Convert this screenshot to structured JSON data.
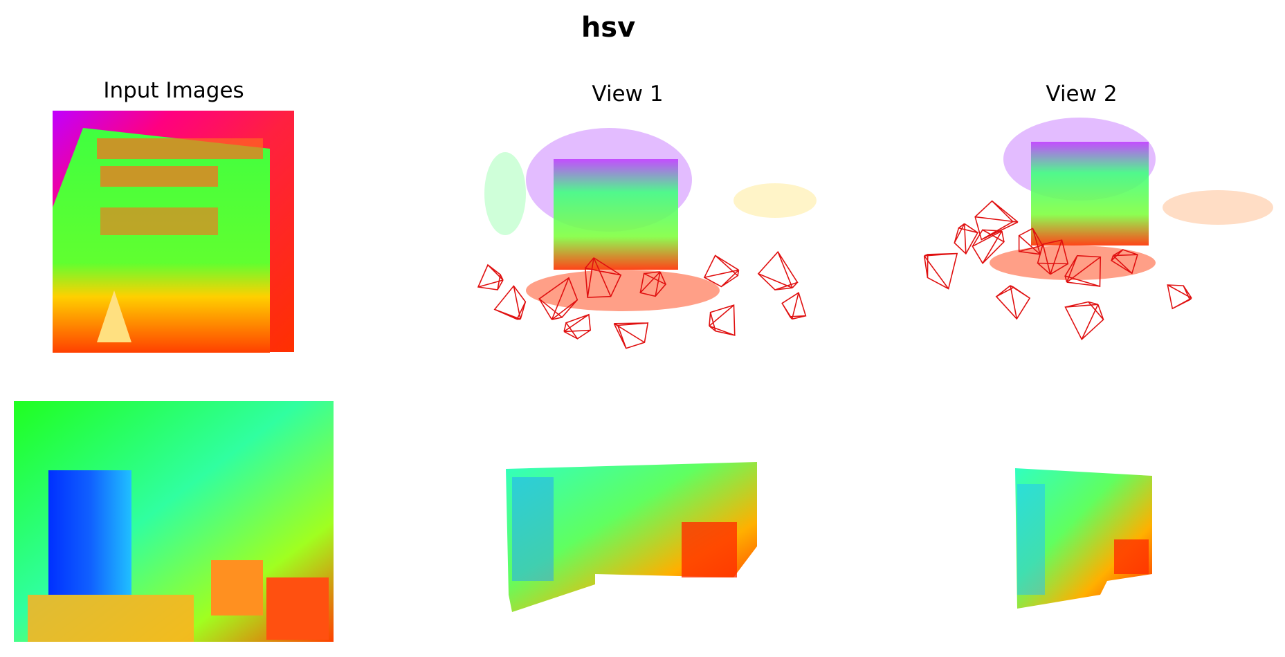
{
  "title": "hsv",
  "panels": {
    "input": "Input Images",
    "view1": "View 1",
    "view2": "View 2"
  }
}
